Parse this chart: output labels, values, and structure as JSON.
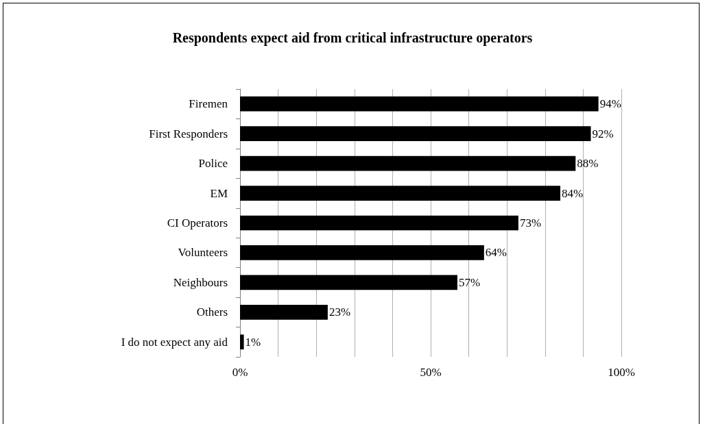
{
  "chart_data": {
    "type": "bar",
    "orientation": "horizontal",
    "title": "Respondents expect aid from critical infrastructure operators",
    "categories": [
      "Firemen",
      "First Responders",
      "Police",
      "EM",
      "CI Operators",
      "Volunteers",
      "Neighbours",
      "Others",
      "I do not expect any aid"
    ],
    "values": [
      94,
      92,
      88,
      84,
      73,
      64,
      57,
      23,
      1
    ],
    "value_labels": [
      "94%",
      "92%",
      "88%",
      "84%",
      "73%",
      "64%",
      "57%",
      "23%",
      "1%"
    ],
    "color": "#000000",
    "xlim": [
      0,
      100
    ],
    "xticks": [
      {
        "value": 0,
        "label": "0%"
      },
      {
        "value": 10,
        "label": null
      },
      {
        "value": 20,
        "label": null
      },
      {
        "value": 30,
        "label": null
      },
      {
        "value": 40,
        "label": null
      },
      {
        "value": 50,
        "label": "50%"
      },
      {
        "value": 60,
        "label": null
      },
      {
        "value": 70,
        "label": null
      },
      {
        "value": 80,
        "label": null
      },
      {
        "value": 90,
        "label": null
      },
      {
        "value": 100,
        "label": "100%"
      }
    ],
    "grid": "x"
  }
}
